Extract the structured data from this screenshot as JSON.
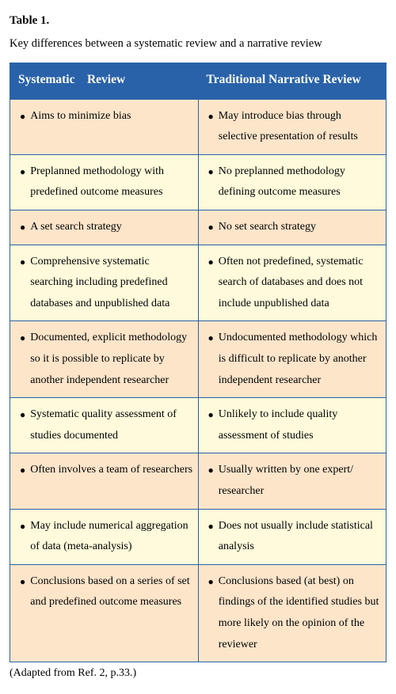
{
  "title": "Table 1.",
  "caption": "Key differences between a systematic review and a narrative review",
  "headers": {
    "left": "Systematic Review",
    "right": "Traditional Narrative Review"
  },
  "rows": [
    {
      "left": "Aims to minimize bias",
      "right": "May introduce bias through selective presentation of results",
      "bg": "light"
    },
    {
      "left": "Preplanned methodology with predefined outcome measures",
      "right": "No preplanned methodology defining outcome measures",
      "bg": "dark"
    },
    {
      "left": "A set search strategy",
      "right": "No set search strategy",
      "bg": "light"
    },
    {
      "left": "Comprehensive systematic searching including predefined databases and unpublished data",
      "right": "Often not predefined, systematic search of databases and does not include unpublished data",
      "bg": "dark"
    },
    {
      "left": "Documented, explicit methodology so it is possible to replicate by another independent researcher",
      "right": "Undocumented methodology which is difficult to replicate by another independent researcher",
      "bg": "light"
    },
    {
      "left": "Systematic quality assessment of studies documented",
      "right": "Unlikely to include quality assessment of studies",
      "bg": "dark"
    },
    {
      "left": "Often involves a team of researchers",
      "right": "Usually written by one expert/ researcher",
      "bg": "light"
    },
    {
      "left": "May include numerical aggregation of data (meta-analysis)",
      "right": "Does not usually include statistical analysis",
      "bg": "dark"
    },
    {
      "left": "Conclusions based on a series of set and predefined outcome measures",
      "right": "Conclusions based (at best) on findings of the identified studies but more likely on the opinion of the reviewer",
      "bg": "light"
    }
  ],
  "source": "(Adapted from Ref. 2, p.33.)",
  "colors": {
    "header_bg": "#2962a8",
    "header_text": "#ffffff",
    "row_light": "#fde5ca",
    "row_dark": "#fefadb",
    "border": "#2962a8"
  }
}
